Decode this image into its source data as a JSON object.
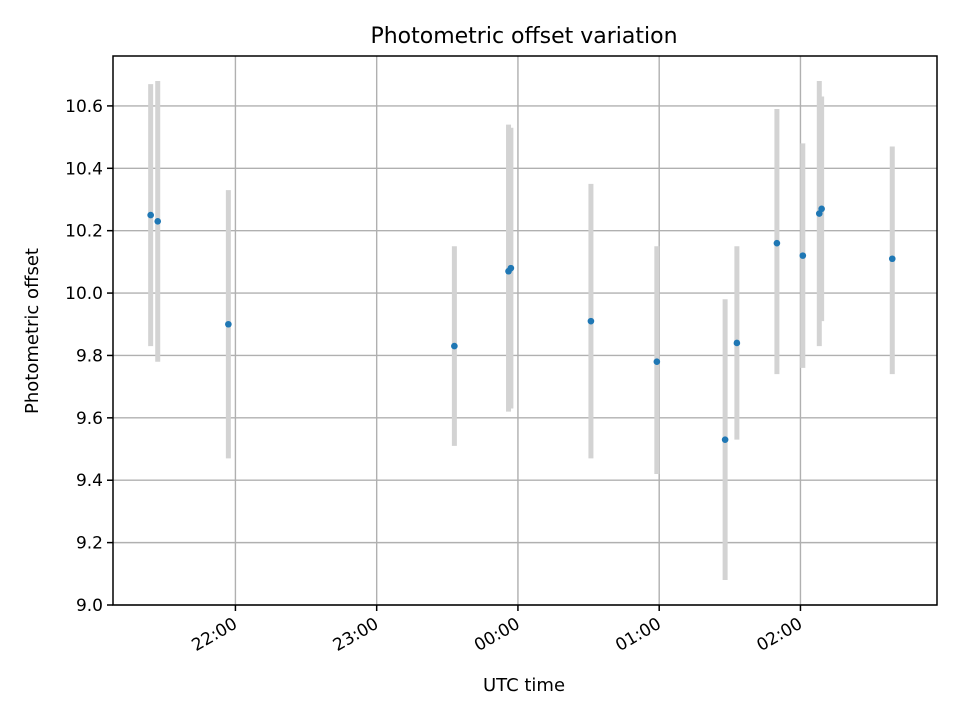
{
  "chart_data": {
    "type": "scatter",
    "title": "Photometric offset variation",
    "xlabel": "UTC time",
    "ylabel": "Photometric offset",
    "x_axis_type": "time",
    "xlim": [
      "21:08",
      "02:58"
    ],
    "ylim": [
      9.0,
      10.76
    ],
    "x_ticks": [
      "22:00",
      "23:00",
      "00:00",
      "01:00",
      "02:00"
    ],
    "y_ticks": [
      "9.0",
      "9.2",
      "9.4",
      "9.6",
      "9.8",
      "10.0",
      "10.2",
      "10.4",
      "10.6"
    ],
    "y_tick_values": [
      9.0,
      9.2,
      9.4,
      9.6,
      9.8,
      10.0,
      10.2,
      10.4,
      10.6
    ],
    "grid": true,
    "errorbar_color": "#d3d3d3",
    "point_color": "#1f77b4",
    "points": [
      {
        "time": "21:24",
        "y": 10.25,
        "err_low": 9.83,
        "err_high": 10.67
      },
      {
        "time": "21:27",
        "y": 10.23,
        "err_low": 9.78,
        "err_high": 10.68
      },
      {
        "time": "21:57",
        "y": 9.9,
        "err_low": 9.47,
        "err_high": 10.33
      },
      {
        "time": "23:33",
        "y": 9.83,
        "err_low": 9.51,
        "err_high": 10.15
      },
      {
        "time": "23:56",
        "y": 10.07,
        "err_low": 9.62,
        "err_high": 10.54
      },
      {
        "time": "23:57",
        "y": 10.08,
        "err_low": 9.63,
        "err_high": 10.53
      },
      {
        "time": "00:31",
        "y": 9.91,
        "err_low": 9.47,
        "err_high": 10.35
      },
      {
        "time": "00:59",
        "y": 9.78,
        "err_low": 9.42,
        "err_high": 10.15
      },
      {
        "time": "01:28",
        "y": 9.53,
        "err_low": 9.08,
        "err_high": 9.98
      },
      {
        "time": "01:33",
        "y": 9.84,
        "err_low": 9.53,
        "err_high": 10.15
      },
      {
        "time": "01:50",
        "y": 10.16,
        "err_low": 9.74,
        "err_high": 10.59
      },
      {
        "time": "02:01",
        "y": 10.12,
        "err_low": 9.76,
        "err_high": 10.48
      },
      {
        "time": "02:08",
        "y": 10.255,
        "err_low": 9.83,
        "err_high": 10.68
      },
      {
        "time": "02:09",
        "y": 10.27,
        "err_low": 9.91,
        "err_high": 10.63
      },
      {
        "time": "02:39",
        "y": 10.11,
        "err_low": 9.74,
        "err_high": 10.47
      }
    ]
  }
}
